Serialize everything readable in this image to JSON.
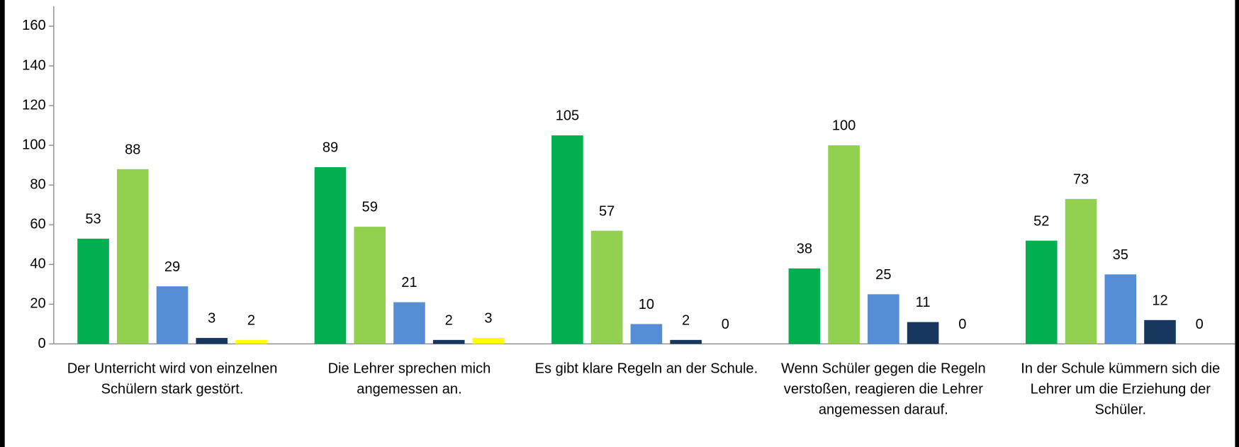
{
  "chart_data": {
    "type": "bar",
    "categories": [
      "Der Unterricht wird von einzelnen Schülern stark gestört.",
      "Die Lehrer sprechen mich angemessen an.",
      "Es gibt klare Regeln an der Schule.",
      "Wenn Schüler gegen die Regeln verstoßen, reagieren die Lehrer angemessen darauf.",
      "In der Schule kümmern sich die Lehrer um die Erziehung der Schüler."
    ],
    "series": [
      {
        "color": "#00b050",
        "values": [
          53,
          89,
          105,
          38,
          52
        ]
      },
      {
        "color": "#92d050",
        "values": [
          88,
          59,
          57,
          100,
          73
        ]
      },
      {
        "color": "#558ed5",
        "values": [
          29,
          21,
          10,
          25,
          35
        ]
      },
      {
        "color": "#17375e",
        "values": [
          3,
          2,
          2,
          11,
          12
        ]
      },
      {
        "color": "#ffff00",
        "values": [
          2,
          3,
          0,
          0,
          0
        ]
      }
    ],
    "ylim": [
      0,
      170
    ],
    "yticks": [
      0,
      20,
      40,
      60,
      80,
      100,
      120,
      140,
      160
    ],
    "data_labels": true
  }
}
